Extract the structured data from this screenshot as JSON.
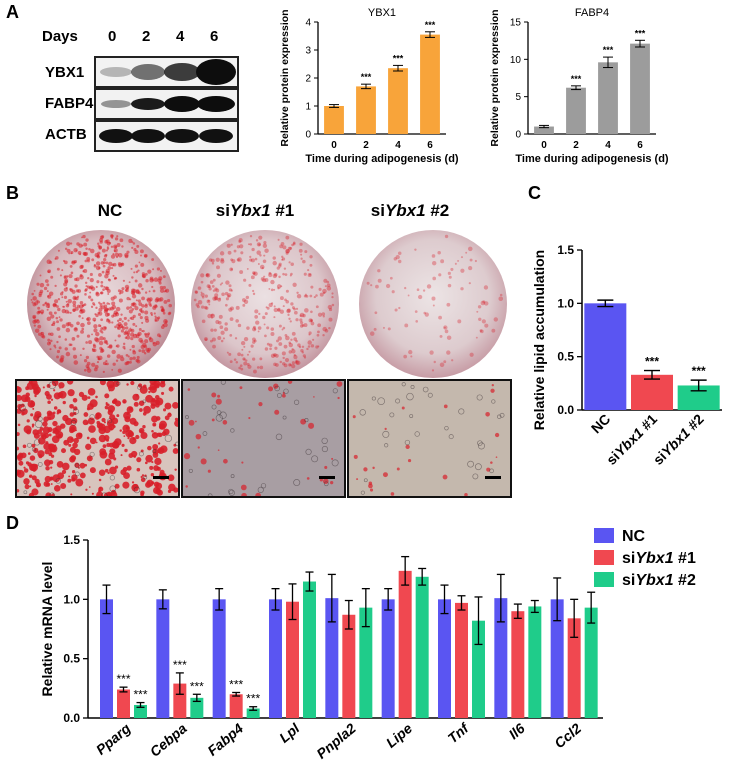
{
  "panels": {
    "a": "A",
    "b": "B",
    "c": "C",
    "d": "D"
  },
  "blot": {
    "days_label": "Days",
    "days": [
      "0",
      "2",
      "4",
      "6"
    ],
    "proteins": [
      "YBX1",
      "FABP4",
      "ACTB"
    ],
    "colors": {
      "dark": "#0d0d0d",
      "background": "#f0f0f0"
    }
  },
  "chart_data": [
    {
      "type": "bar",
      "title": "YBX1",
      "xlabel": "Time during adipogenesis (d)",
      "ylabel": "Relative protein expression",
      "categories": [
        "0",
        "2",
        "4",
        "6"
      ],
      "values": [
        1.0,
        1.7,
        2.35,
        3.55
      ],
      "errors": [
        0.05,
        0.08,
        0.1,
        0.1
      ],
      "annotations": [
        "",
        "***",
        "***",
        "***"
      ],
      "ylim": [
        0,
        4
      ],
      "yticks": [
        "0",
        "1",
        "2",
        "3",
        "4"
      ],
      "color": "#f8a43a"
    },
    {
      "type": "bar",
      "title": "FABP4",
      "xlabel": "Time during adipogenesis (d)",
      "ylabel": "Relative protein expression",
      "categories": [
        "0",
        "2",
        "4",
        "6"
      ],
      "values": [
        1.0,
        6.2,
        9.6,
        12.1
      ],
      "errors": [
        0.15,
        0.25,
        0.7,
        0.45
      ],
      "annotations": [
        "",
        "***",
        "***",
        "***"
      ],
      "ylim": [
        0,
        15
      ],
      "yticks": [
        "0",
        "5",
        "10",
        "15"
      ],
      "color": "#9c9c9c"
    },
    {
      "type": "bar",
      "title": "",
      "xlabel": "",
      "ylabel": "Relative lipid accumulation",
      "categories": [
        "NC",
        "siYbx1 #1",
        "siYbx1 #2"
      ],
      "category_parts": [
        [
          "NC",
          "",
          ""
        ],
        [
          "si",
          "Ybx1",
          " #1"
        ],
        [
          "si",
          "Ybx1",
          " #2"
        ]
      ],
      "values": [
        1.0,
        0.33,
        0.23
      ],
      "errors": [
        0.03,
        0.04,
        0.05
      ],
      "annotations": [
        "",
        "***",
        "***"
      ],
      "ylim": [
        0,
        1.5
      ],
      "yticks": [
        "0.0",
        "0.5",
        "1.0",
        "1.5"
      ],
      "colors": [
        "#5a55f2",
        "#f04850",
        "#1fcc8a"
      ]
    },
    {
      "type": "bar",
      "title": "",
      "xlabel": "",
      "ylabel": "Relative mRNA level",
      "categories": [
        "Pparg",
        "Cebpa",
        "Fabp4",
        "Lpl",
        "Pnpla2",
        "Lipe",
        "Tnf",
        "Il6",
        "Ccl2"
      ],
      "ylim": [
        0,
        1.5
      ],
      "yticks": [
        "0.0",
        "0.5",
        "1.0",
        "1.5"
      ],
      "legend_position": "top-right",
      "series": [
        {
          "name": "NC",
          "name_parts": [
            "NC",
            "",
            ""
          ],
          "color": "#5a55f2",
          "values": [
            1.0,
            1.0,
            1.0,
            1.0,
            1.01,
            1.0,
            1.0,
            1.01,
            1.0
          ],
          "errors": [
            0.12,
            0.08,
            0.09,
            0.09,
            0.2,
            0.09,
            0.12,
            0.2,
            0.18
          ],
          "annotations": [
            "",
            "",
            "",
            "",
            "",
            "",
            "",
            "",
            ""
          ]
        },
        {
          "name": "siYbx1 #1",
          "name_parts": [
            "si",
            "Ybx1",
            " #1"
          ],
          "color": "#f04850",
          "values": [
            0.24,
            0.29,
            0.2,
            0.98,
            0.87,
            1.24,
            0.97,
            0.9,
            0.84
          ],
          "errors": [
            0.02,
            0.09,
            0.015,
            0.15,
            0.12,
            0.12,
            0.06,
            0.06,
            0.16
          ],
          "annotations": [
            "***",
            "***",
            "***",
            "",
            "",
            "",
            "",
            "",
            ""
          ]
        },
        {
          "name": "siYbx1 #2",
          "name_parts": [
            "si",
            "Ybx1",
            " #2"
          ],
          "color": "#1fcc8a",
          "values": [
            0.11,
            0.17,
            0.08,
            1.15,
            0.93,
            1.19,
            0.82,
            0.94,
            0.93
          ],
          "errors": [
            0.02,
            0.03,
            0.015,
            0.08,
            0.16,
            0.07,
            0.2,
            0.05,
            0.13
          ],
          "annotations": [
            "***",
            "***",
            "***",
            "",
            "",
            "",
            "",
            "",
            ""
          ]
        }
      ]
    }
  ],
  "staining": {
    "groups": [
      {
        "parts": [
          "NC",
          "",
          ""
        ]
      },
      {
        "parts": [
          "si",
          "Ybx1",
          " #1"
        ]
      },
      {
        "parts": [
          "si",
          "Ybx1",
          " #2"
        ]
      }
    ],
    "stain_color": "#d8202a",
    "dish_colors": [
      "#c9a5ac",
      "#c9b0b6",
      "#cdb5bb"
    ]
  }
}
